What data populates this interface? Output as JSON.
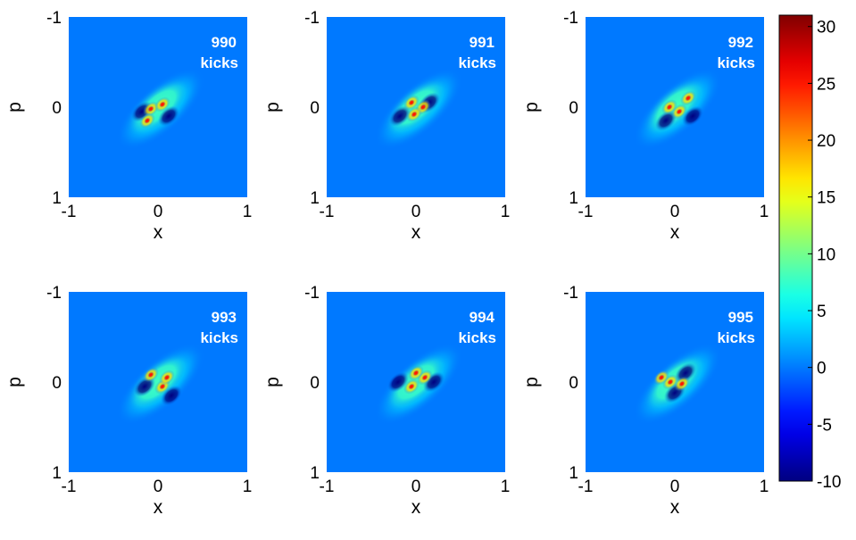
{
  "chart_data": {
    "type": "heatmap",
    "colormap": "jet",
    "clim": [
      -10,
      31
    ],
    "colorbar": {
      "ticks": [
        30,
        25,
        20,
        15,
        10,
        5,
        0,
        -5,
        -10
      ],
      "tick_labels": [
        "30",
        "25",
        "20",
        "15",
        "10",
        "5",
        "0",
        "-5",
        "-10"
      ]
    },
    "xlabel": "x",
    "ylabel": "p",
    "xlim": [
      -1,
      1
    ],
    "ylim": [
      -1,
      1
    ],
    "x_tick_labels": [
      "-1",
      "0",
      "1"
    ],
    "y_tick_labels": [
      "-1",
      "0",
      "1"
    ],
    "background_value": 0,
    "panels": [
      {
        "kicks": "990",
        "unit": "kicks",
        "orientation_deg": -42,
        "peaks": [
          [
            -0.08,
            0.02
          ],
          [
            0.05,
            -0.03
          ],
          [
            -0.12,
            0.15
          ]
        ],
        "troughs": [
          [
            -0.18,
            0.05
          ],
          [
            0.12,
            0.1
          ]
        ]
      },
      {
        "kicks": "991",
        "unit": "kicks",
        "orientation_deg": -42,
        "peaks": [
          [
            -0.05,
            -0.05
          ],
          [
            0.08,
            0.0
          ],
          [
            -0.02,
            0.08
          ]
        ],
        "troughs": [
          [
            -0.18,
            0.1
          ],
          [
            0.15,
            -0.05
          ]
        ]
      },
      {
        "kicks": "992",
        "unit": "kicks",
        "orientation_deg": -42,
        "peaks": [
          [
            0.05,
            0.05
          ],
          [
            -0.06,
            0.0
          ],
          [
            0.15,
            -0.1
          ]
        ],
        "troughs": [
          [
            -0.1,
            0.15
          ],
          [
            0.2,
            0.1
          ]
        ]
      },
      {
        "kicks": "993",
        "unit": "kicks",
        "orientation_deg": -42,
        "peaks": [
          [
            -0.08,
            -0.08
          ],
          [
            0.05,
            0.05
          ],
          [
            0.1,
            -0.05
          ]
        ],
        "troughs": [
          [
            -0.15,
            0.05
          ],
          [
            0.15,
            0.15
          ]
        ]
      },
      {
        "kicks": "994",
        "unit": "kicks",
        "orientation_deg": -42,
        "peaks": [
          [
            -0.05,
            0.05
          ],
          [
            0.1,
            -0.05
          ],
          [
            0.0,
            -0.1
          ]
        ],
        "troughs": [
          [
            -0.2,
            0.0
          ],
          [
            0.2,
            0.0
          ]
        ]
      },
      {
        "kicks": "995",
        "unit": "kicks",
        "orientation_deg": -42,
        "peaks": [
          [
            -0.05,
            0.0
          ],
          [
            0.08,
            0.02
          ],
          [
            -0.15,
            -0.05
          ]
        ],
        "troughs": [
          [
            0.0,
            0.12
          ],
          [
            0.12,
            -0.1
          ]
        ]
      }
    ]
  }
}
